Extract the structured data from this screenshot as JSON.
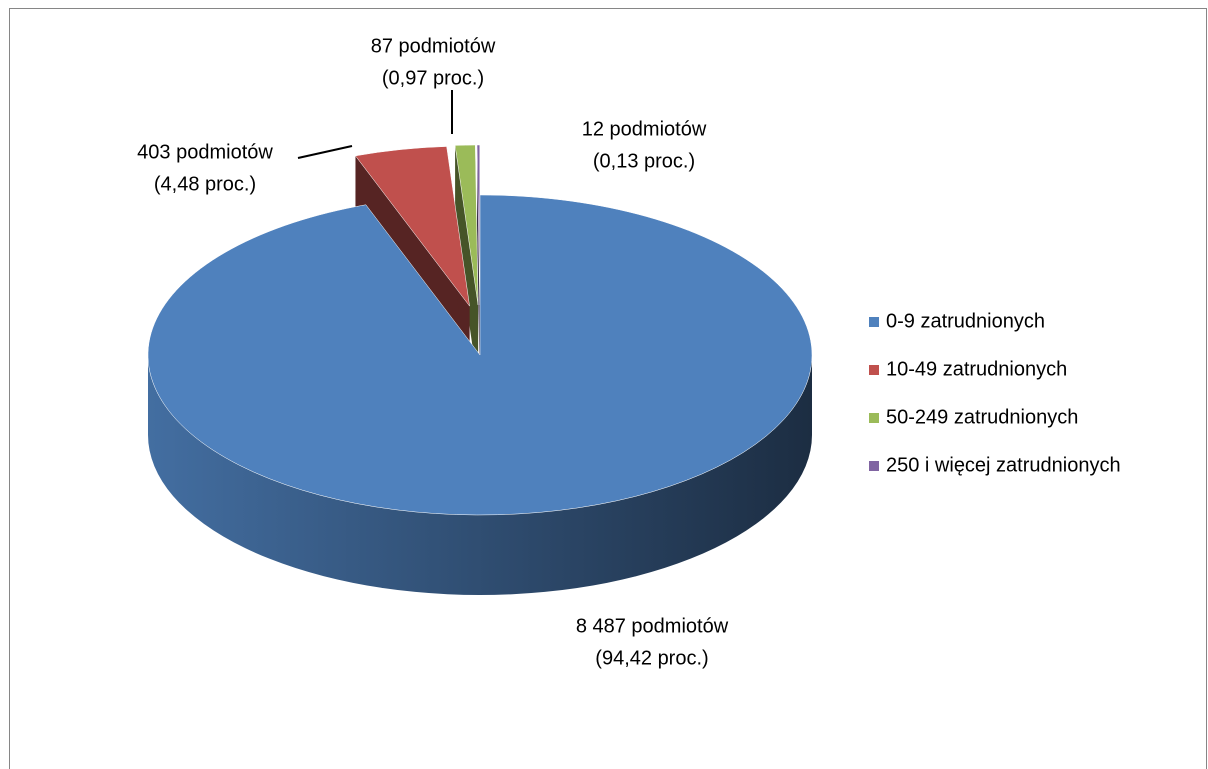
{
  "chart_data": {
    "type": "pie",
    "categories": [
      "0-9 zatrudnionych",
      "10-49 zatrudnionych",
      "50-249 zatrudnionych",
      "250 i więcej zatrudnionych"
    ],
    "values": [
      8487,
      403,
      87,
      12
    ],
    "value_labels": [
      "8 487 podmiotów",
      "403 podmiotów",
      "87 podmiotów",
      "12 podmiotów"
    ],
    "percent_labels": [
      "(94,42 proc.)",
      "(4,48 proc.)",
      "(0,97 proc.)",
      "(0,13 proc.)"
    ],
    "colors": [
      "#4f81bd",
      "#c0504d",
      "#9bbb59",
      "#8064a2"
    ],
    "legend": "right"
  }
}
